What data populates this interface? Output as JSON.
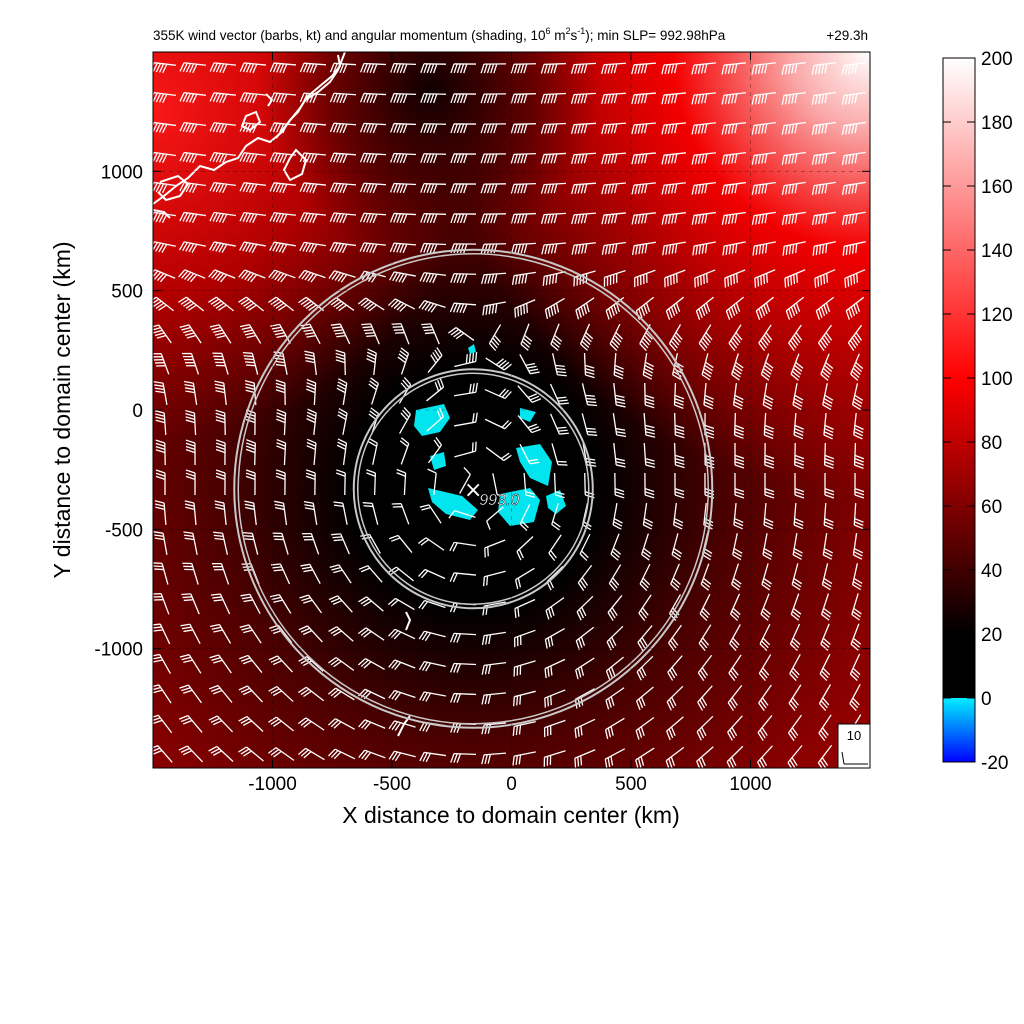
{
  "chart_data": {
    "type": "heatmap",
    "title_main": "355K wind vector (barbs, kt) and angular momentum (shading, 10",
    "title_exp1": "6",
    "title_unit_a": " m",
    "title_exp2": "2",
    "title_unit_b": "s",
    "title_exp3": "-1",
    "title_tail": "); min SLP= 992.98hPa",
    "title_time": "+29.3h",
    "xlabel": "X distance to domain center (km)",
    "ylabel": "Y distance to domain center (km)",
    "xlim": [
      -1500,
      1500
    ],
    "ylim": [
      -1500,
      1500
    ],
    "x_ticks": [
      {
        "value": -1000,
        "label": "-1000"
      },
      {
        "value": -500,
        "label": "-500"
      },
      {
        "value": 0,
        "label": "0"
      },
      {
        "value": 500,
        "label": "500"
      },
      {
        "value": 1000,
        "label": "1000"
      }
    ],
    "y_ticks": [
      {
        "value": 1000,
        "label": "1000"
      },
      {
        "value": 500,
        "label": "500"
      },
      {
        "value": 0,
        "label": "0"
      },
      {
        "value": -500,
        "label": "-500"
      },
      {
        "value": -1000,
        "label": "-1000"
      }
    ],
    "grid": "dashed",
    "storm_center": {
      "x": -160,
      "y": -330,
      "marker": "×",
      "label": "993.0"
    },
    "range_rings_km": [
      500,
      1000
    ],
    "colorbar": {
      "min": -20,
      "max": 200,
      "ticks": [
        {
          "value": 200,
          "label": "200"
        },
        {
          "value": 180,
          "label": "180"
        },
        {
          "value": 160,
          "label": "160"
        },
        {
          "value": 140,
          "label": "140"
        },
        {
          "value": 120,
          "label": "120"
        },
        {
          "value": 100,
          "label": "100"
        },
        {
          "value": 80,
          "label": "80"
        },
        {
          "value": 60,
          "label": "60"
        },
        {
          "value": 40,
          "label": "40"
        },
        {
          "value": 20,
          "label": "20"
        },
        {
          "value": 0,
          "label": "0"
        },
        {
          "value": -20,
          "label": "-20"
        }
      ],
      "stops": [
        {
          "value": -20,
          "color": "#0000ff"
        },
        {
          "value": 0,
          "color": "#00eeff"
        },
        {
          "value": 0.01,
          "color": "#000000"
        },
        {
          "value": 20,
          "color": "#000000"
        },
        {
          "value": 100,
          "color": "#ff0000"
        },
        {
          "value": 200,
          "color": "#ffffff"
        }
      ]
    },
    "barb_scale_label": "10",
    "colors": {
      "negative": "#00e5ee",
      "barbs": "#ffffff",
      "rings": "#c8c8c8",
      "coast": "#ffffff"
    }
  }
}
